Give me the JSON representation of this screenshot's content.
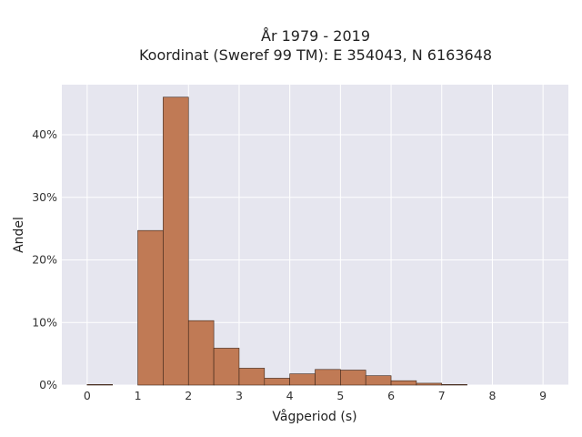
{
  "chart_data": {
    "type": "bar",
    "title_line1": "År 1979 - 2019",
    "title_line2": "Koordinat (Sweref 99 TM): E 354043, N 6163648",
    "xlabel": "Vågperiod (s)",
    "ylabel": "Andel",
    "xlim": [
      -0.5,
      9.5
    ],
    "ylim": [
      0,
      0.48
    ],
    "x_ticks": [
      0,
      1,
      2,
      3,
      4,
      5,
      6,
      7,
      8,
      9
    ],
    "y_ticks": [
      0,
      0.1,
      0.2,
      0.3,
      0.4
    ],
    "y_tick_labels": [
      "0%",
      "10%",
      "20%",
      "30%",
      "40%"
    ],
    "bin_width": 0.5,
    "bins": [
      {
        "x0": 0.0,
        "value": 0.001
      },
      {
        "x0": 1.0,
        "value": 0.247
      },
      {
        "x0": 1.5,
        "value": 0.46
      },
      {
        "x0": 2.0,
        "value": 0.103
      },
      {
        "x0": 2.5,
        "value": 0.059
      },
      {
        "x0": 3.0,
        "value": 0.027
      },
      {
        "x0": 3.5,
        "value": 0.011
      },
      {
        "x0": 4.0,
        "value": 0.018
      },
      {
        "x0": 4.5,
        "value": 0.025
      },
      {
        "x0": 5.0,
        "value": 0.024
      },
      {
        "x0": 5.5,
        "value": 0.015
      },
      {
        "x0": 6.0,
        "value": 0.007
      },
      {
        "x0": 6.5,
        "value": 0.003
      },
      {
        "x0": 7.0,
        "value": 0.001
      }
    ],
    "grid": true,
    "colors": {
      "bar": "#c07a55",
      "bar_edge": "#3a2418",
      "plot_bg": "#e6e6ef",
      "grid": "#ffffff"
    }
  }
}
